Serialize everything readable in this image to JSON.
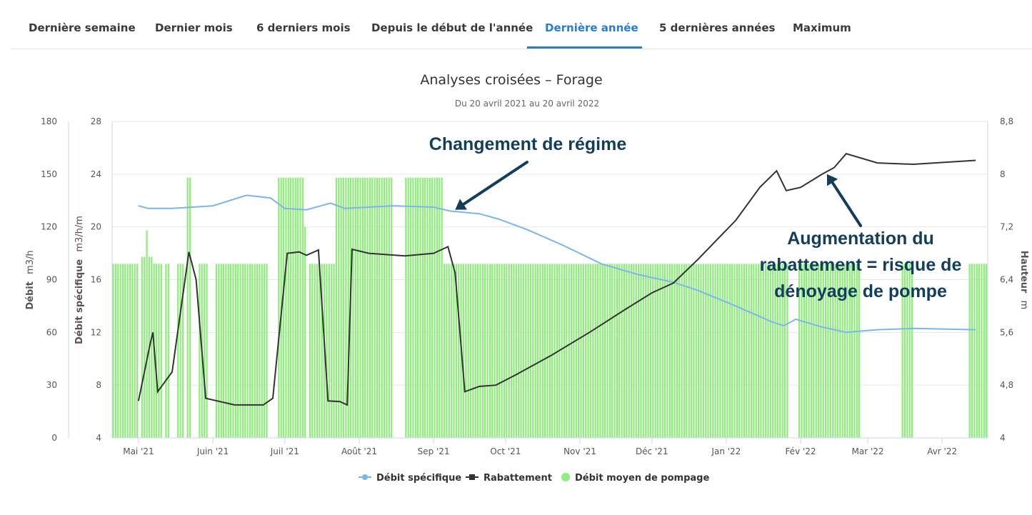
{
  "tabs": [
    {
      "label": "Dernière semaine",
      "active": false
    },
    {
      "label": "Dernier mois",
      "active": false
    },
    {
      "label": "6 derniers mois",
      "active": false
    },
    {
      "label": "Depuis le début de l'année",
      "active": false
    },
    {
      "label": "Dernière année",
      "active": true
    },
    {
      "label": "5 dernières années",
      "active": false
    },
    {
      "label": "Maximum",
      "active": false
    }
  ],
  "colors": {
    "accent": "#2c7cc8",
    "debit_specifique": "#7cb5ec",
    "rabattement": "#333333",
    "pompage": "#90ed7d",
    "annotation": "#123e5c"
  },
  "chart_data": {
    "type": "bar",
    "title": "Analyses croisées – Forage",
    "subtitle": "Du 20 avril 2021 au 20 avril 2022",
    "axes": {
      "left1": {
        "title": "Débit",
        "unit": "m3/h",
        "min": 0,
        "max": 180,
        "ticks": [
          "0",
          "30",
          "60",
          "90",
          "120",
          "150",
          "180"
        ]
      },
      "left2": {
        "title": "Débit spécifique",
        "unit": "m3/h/m",
        "min": 4,
        "max": 28,
        "ticks": [
          "4",
          "8",
          "12",
          "16",
          "20",
          "24",
          "28"
        ]
      },
      "right": {
        "title": "Hauteur",
        "unit": "m",
        "min": 4,
        "max": 8.8,
        "ticks": [
          "4",
          "4,8",
          "5,6",
          "6,4",
          "7,2",
          "8",
          "8,8"
        ]
      },
      "x": {
        "min": "2021-04-20",
        "max": "2022-04-20",
        "ticks": [
          "Mai '21",
          "Juin '21",
          "Juil '21",
          "Août '21",
          "Sep '21",
          "Oct '21",
          "Nov '21",
          "Déc '21",
          "Jan '22",
          "Fév '22",
          "Mar '22",
          "Avr '22"
        ]
      }
    },
    "legend_position": "bottom-center",
    "series": [
      {
        "name": "Débit spécifique",
        "type": "line",
        "axis": "left2",
        "points": [
          [
            "2021-05-01",
            21.6
          ],
          [
            "2021-05-05",
            21.4
          ],
          [
            "2021-05-15",
            21.4
          ],
          [
            "2021-06-01",
            21.6
          ],
          [
            "2021-06-15",
            22.4
          ],
          [
            "2021-06-25",
            22.2
          ],
          [
            "2021-07-01",
            21.4
          ],
          [
            "2021-07-10",
            21.3
          ],
          [
            "2021-07-20",
            21.8
          ],
          [
            "2021-07-26",
            21.4
          ],
          [
            "2021-08-05",
            21.5
          ],
          [
            "2021-08-15",
            21.6
          ],
          [
            "2021-09-01",
            21.5
          ],
          [
            "2021-09-08",
            21.2
          ],
          [
            "2021-09-20",
            21.0
          ],
          [
            "2021-09-28",
            20.6
          ],
          [
            "2021-10-10",
            19.8
          ],
          [
            "2021-10-25",
            18.6
          ],
          [
            "2021-11-10",
            17.2
          ],
          [
            "2021-11-25",
            16.4
          ],
          [
            "2021-12-10",
            15.8
          ],
          [
            "2021-12-20",
            15.2
          ],
          [
            "2022-01-05",
            14.0
          ],
          [
            "2022-01-20",
            12.8
          ],
          [
            "2022-01-25",
            12.5
          ],
          [
            "2022-01-30",
            13.0
          ],
          [
            "2022-02-10",
            12.4
          ],
          [
            "2022-02-20",
            12.0
          ],
          [
            "2022-03-05",
            12.2
          ],
          [
            "2022-03-20",
            12.3
          ],
          [
            "2022-04-15",
            12.2
          ]
        ]
      },
      {
        "name": "Rabattement",
        "type": "line",
        "axis": "right",
        "points": [
          [
            "2021-05-01",
            4.56
          ],
          [
            "2021-05-06",
            5.45
          ],
          [
            "2021-05-07",
            5.6
          ],
          [
            "2021-05-09",
            4.7
          ],
          [
            "2021-05-15",
            5.0
          ],
          [
            "2021-05-22",
            6.82
          ],
          [
            "2021-05-25",
            6.4
          ],
          [
            "2021-05-29",
            4.6
          ],
          [
            "2021-06-10",
            4.5
          ],
          [
            "2021-06-22",
            4.5
          ],
          [
            "2021-06-26",
            4.6
          ],
          [
            "2021-07-02",
            6.8
          ],
          [
            "2021-07-07",
            6.82
          ],
          [
            "2021-07-10",
            6.77
          ],
          [
            "2021-07-15",
            6.85
          ],
          [
            "2021-07-19",
            4.56
          ],
          [
            "2021-07-24",
            4.55
          ],
          [
            "2021-07-27",
            4.5
          ],
          [
            "2021-07-29",
            6.86
          ],
          [
            "2021-08-05",
            6.8
          ],
          [
            "2021-08-20",
            6.76
          ],
          [
            "2021-09-01",
            6.8
          ],
          [
            "2021-09-07",
            6.9
          ],
          [
            "2021-09-10",
            6.5
          ],
          [
            "2021-09-14",
            4.7
          ],
          [
            "2021-09-20",
            4.78
          ],
          [
            "2021-09-27",
            4.8
          ],
          [
            "2021-10-05",
            4.95
          ],
          [
            "2021-10-20",
            5.25
          ],
          [
            "2021-11-05",
            5.6
          ],
          [
            "2021-11-20",
            5.95
          ],
          [
            "2021-12-01",
            6.2
          ],
          [
            "2021-12-10",
            6.35
          ],
          [
            "2021-12-20",
            6.7
          ],
          [
            "2022-01-05",
            7.3
          ],
          [
            "2022-01-15",
            7.8
          ],
          [
            "2022-01-22",
            8.05
          ],
          [
            "2022-01-26",
            7.75
          ],
          [
            "2022-02-01",
            7.8
          ],
          [
            "2022-02-10",
            8.0
          ],
          [
            "2022-02-15",
            8.1
          ],
          [
            "2022-02-20",
            8.31
          ],
          [
            "2022-03-05",
            8.17
          ],
          [
            "2022-03-20",
            8.15
          ],
          [
            "2022-04-15",
            8.21
          ]
        ]
      },
      {
        "name": "Débit moyen de pompage",
        "type": "column",
        "axis": "left1",
        "segments": [
          {
            "from": "2021-04-20",
            "to": "2021-05-01",
            "value": 99
          },
          {
            "from": "2021-05-02",
            "to": "2021-05-04",
            "value": 103
          },
          {
            "from": "2021-05-04",
            "to": "2021-05-05",
            "value": 118
          },
          {
            "from": "2021-05-05",
            "to": "2021-05-07",
            "value": 103
          },
          {
            "from": "2021-05-07",
            "to": "2021-05-11",
            "value": 99
          },
          {
            "from": "2021-05-12",
            "to": "2021-05-14",
            "value": 99
          },
          {
            "from": "2021-05-17",
            "to": "2021-05-20",
            "value": 99
          },
          {
            "from": "2021-05-21",
            "to": "2021-05-23",
            "value": 148
          },
          {
            "from": "2021-05-26",
            "to": "2021-05-30",
            "value": 99
          },
          {
            "from": "2021-06-02",
            "to": "2021-06-24",
            "value": 99
          },
          {
            "from": "2021-06-28",
            "to": "2021-07-09",
            "value": 148
          },
          {
            "from": "2021-07-09",
            "to": "2021-07-10",
            "value": 120
          },
          {
            "from": "2021-07-11",
            "to": "2021-07-22",
            "value": 99
          },
          {
            "from": "2021-07-22",
            "to": "2021-08-15",
            "value": 148
          },
          {
            "from": "2021-08-20",
            "to": "2021-09-05",
            "value": 148
          },
          {
            "from": "2021-09-05",
            "to": "2022-01-27",
            "value": 99
          },
          {
            "from": "2022-01-31",
            "to": "2022-02-26",
            "value": 99
          },
          {
            "from": "2022-03-15",
            "to": "2022-03-20",
            "value": 99
          },
          {
            "from": "2022-04-12",
            "to": "2022-04-20",
            "value": 99
          }
        ]
      }
    ],
    "annotations": [
      {
        "text": "Changement de régime",
        "date": "2021-09-10",
        "axis": "left2",
        "value": 21.3
      },
      {
        "text_lines": [
          "Augmentation du",
          "rabattement = risque de",
          "dénoyage de pompe"
        ],
        "date": "2022-02-12",
        "axis": "right",
        "value": 8.0
      }
    ]
  }
}
